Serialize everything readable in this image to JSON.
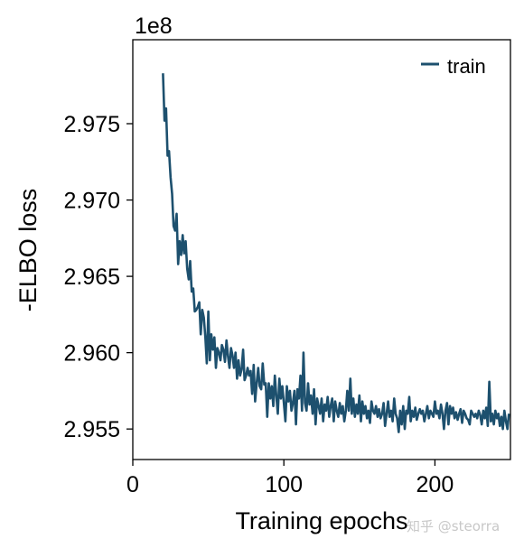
{
  "chart_data": {
    "type": "line",
    "xlabel": "Training epochs",
    "ylabel": "-ELBO loss",
    "offset_text": "1e8",
    "xlim": [
      0,
      250
    ],
    "ylim": [
      2.953,
      2.9805
    ],
    "xticks": [
      0,
      100,
      200
    ],
    "xtick_labels": [
      "0",
      "100",
      "200"
    ],
    "yticks": [
      2.955,
      2.96,
      2.965,
      2.97,
      2.975
    ],
    "ytick_labels": [
      "2.955",
      "2.960",
      "2.965",
      "2.970",
      "2.975"
    ],
    "grid": false,
    "legend": {
      "position": "top-right",
      "entries": [
        "train"
      ]
    },
    "series": [
      {
        "name": "train",
        "color": "#1d506e",
        "x_start": 20,
        "x_step": 1,
        "values": [
          2.9783,
          2.9752,
          2.976,
          2.9729,
          2.9732,
          2.9715,
          2.9704,
          2.9683,
          2.968,
          2.9691,
          2.9658,
          2.9673,
          2.9664,
          2.9677,
          2.9665,
          2.9673,
          2.9655,
          2.9648,
          2.966,
          2.964,
          2.9642,
          2.9627,
          2.9628,
          2.963,
          2.9633,
          2.9612,
          2.9628,
          2.9623,
          2.961,
          2.9593,
          2.9627,
          2.9595,
          2.9612,
          2.9602,
          2.961,
          2.959,
          2.9603,
          2.96,
          2.9595,
          2.9605,
          2.9602,
          2.9594,
          2.9608,
          2.9598,
          2.959,
          2.9603,
          2.9598,
          2.959,
          2.96,
          2.9583,
          2.9595,
          2.9585,
          2.9589,
          2.9602,
          2.9582,
          2.9585,
          2.959,
          2.9585,
          2.9588,
          2.9573,
          2.9592,
          2.9568,
          2.958,
          2.959,
          2.9578,
          2.9576,
          2.9593,
          2.9579,
          2.958,
          2.9558,
          2.958,
          2.957,
          2.9578,
          2.9565,
          2.9585,
          2.9572,
          2.956,
          2.9583,
          2.957,
          2.9578,
          2.9567,
          2.9555,
          2.9578,
          2.9568,
          2.9575,
          2.9562,
          2.9567,
          2.9575,
          2.9553,
          2.9576,
          2.957,
          2.9585,
          2.9562,
          2.96,
          2.9567,
          2.9562,
          2.958,
          2.9566,
          2.9572,
          2.956,
          2.9576,
          2.9553,
          2.957,
          2.9565,
          2.956,
          2.957,
          2.9555,
          2.9566,
          2.9562,
          2.9571,
          2.9558,
          2.9565,
          2.957,
          2.9555,
          2.9568,
          2.9562,
          2.9558,
          2.9567,
          2.956,
          2.9565,
          2.9555,
          2.9562,
          2.9575,
          2.9562,
          2.9583,
          2.956,
          2.957,
          2.9558,
          2.9566,
          2.956,
          2.9572,
          2.9555,
          2.9568,
          2.956,
          2.9565,
          2.9557,
          2.9562,
          2.9554,
          2.9568,
          2.9562,
          2.956,
          2.9565,
          2.9558,
          2.9563,
          2.9557,
          2.956,
          2.9567,
          2.9552,
          2.956,
          2.9568,
          2.9558,
          2.9562,
          2.9555,
          2.957,
          2.956,
          2.9557,
          2.9548,
          2.9562,
          2.9553,
          2.9565,
          2.955,
          2.9562,
          2.956,
          2.9571,
          2.9555,
          2.9562,
          2.9558,
          2.9564,
          2.9556,
          2.956,
          2.9563,
          2.956,
          2.9562,
          2.9555,
          2.956,
          2.9565,
          2.9557,
          2.9562,
          2.956,
          2.9558,
          2.9568,
          2.956,
          2.9562,
          2.9557,
          2.9566,
          2.956,
          2.955,
          2.9562,
          2.9567,
          2.9553,
          2.9565,
          2.956,
          2.9564,
          2.9557,
          2.9561,
          2.9556,
          2.956,
          2.9563,
          2.9554,
          2.9562,
          2.956,
          2.9557,
          2.9556,
          2.9553,
          2.9562,
          2.956,
          2.9558,
          2.956,
          2.9557,
          2.9562,
          2.9559,
          2.9553,
          2.9562,
          2.9557,
          2.9564,
          2.9552,
          2.9581,
          2.9555,
          2.956,
          2.9553,
          2.9562,
          2.9557,
          2.956,
          2.9552,
          2.9558,
          2.955,
          2.9562,
          2.9555,
          2.955,
          2.956
        ]
      }
    ]
  },
  "watermark": "知乎 @steorra"
}
